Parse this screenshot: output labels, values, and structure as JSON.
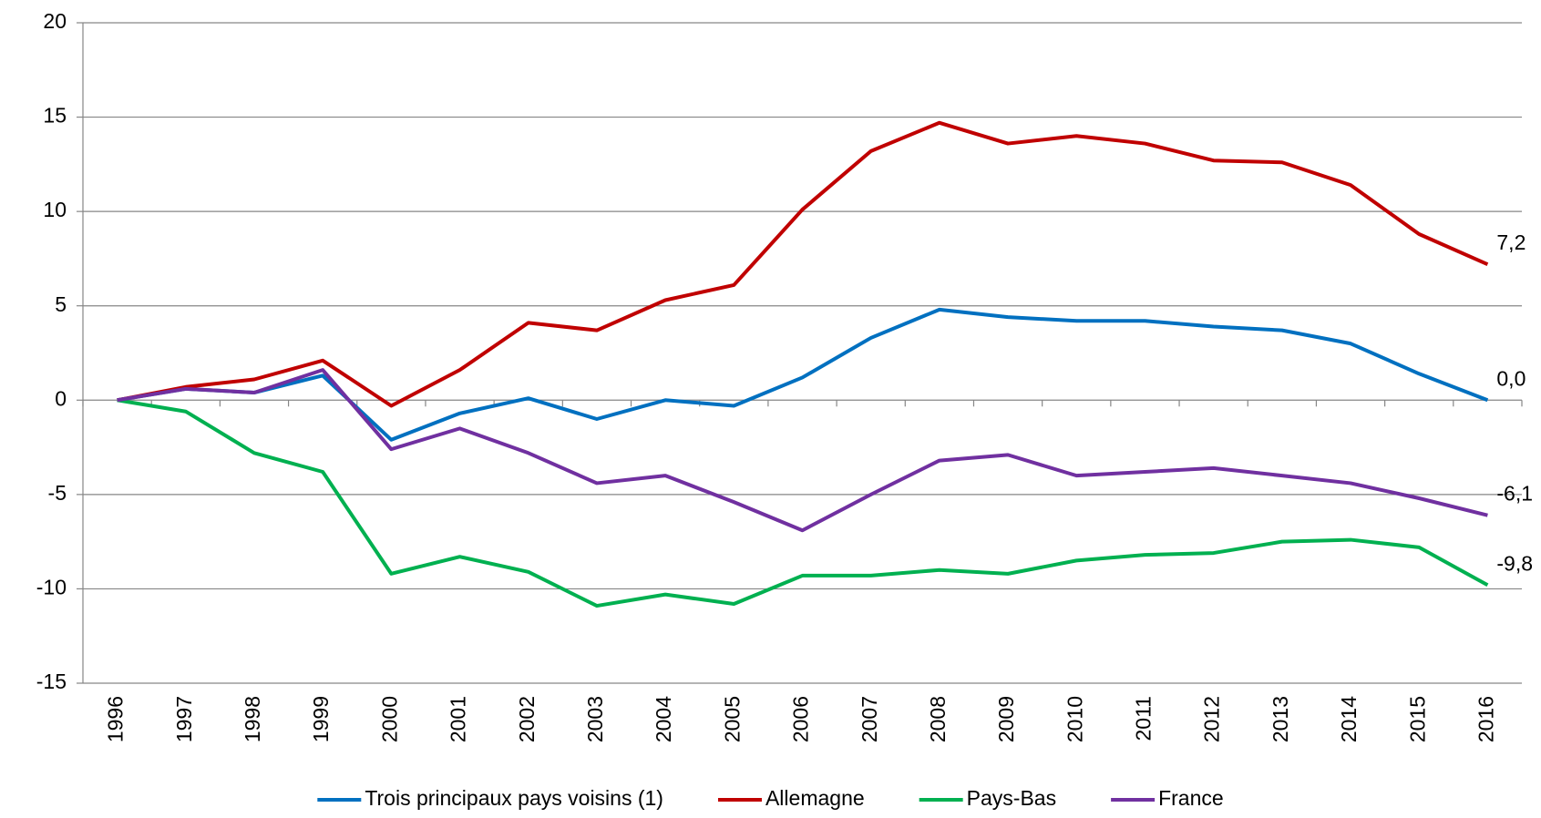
{
  "chart_data": {
    "type": "line",
    "categories": [
      "1996",
      "1997",
      "1998",
      "1999",
      "2000",
      "2001",
      "2002",
      "2003",
      "2004",
      "2005",
      "2006",
      "2007",
      "2008",
      "2009",
      "2010",
      "2011",
      "2012",
      "2013",
      "2014",
      "2015",
      "2016"
    ],
    "series": [
      {
        "name": "Trois principaux pays voisins (1)",
        "color": "#0070c0",
        "values": [
          0,
          0.6,
          0.4,
          1.3,
          -2.1,
          -0.7,
          0.1,
          -1.0,
          0.0,
          -0.3,
          1.2,
          3.3,
          4.8,
          4.4,
          4.2,
          4.2,
          3.9,
          3.7,
          3.0,
          1.4,
          0.0
        ],
        "value_labels": [
          null,
          null,
          null,
          null,
          null,
          null,
          null,
          null,
          null,
          null,
          null,
          null,
          null,
          null,
          null,
          null,
          null,
          null,
          null,
          null,
          "0,0"
        ]
      },
      {
        "name": "Allemagne",
        "color": "#c00000",
        "values": [
          0,
          0.7,
          1.1,
          2.1,
          -0.3,
          1.6,
          4.1,
          3.7,
          5.3,
          6.1,
          10.1,
          13.2,
          14.7,
          13.6,
          14.0,
          13.6,
          12.7,
          12.6,
          11.4,
          8.8,
          7.2
        ],
        "value_labels": [
          null,
          null,
          null,
          null,
          null,
          null,
          null,
          null,
          null,
          null,
          null,
          null,
          null,
          null,
          null,
          null,
          null,
          null,
          null,
          null,
          "7,2"
        ]
      },
      {
        "name": "Pays-Bas",
        "color": "#00b050",
        "values": [
          0,
          -0.6,
          -2.8,
          -3.8,
          -9.2,
          -8.3,
          -9.1,
          -10.9,
          -10.3,
          -10.8,
          -9.3,
          -9.3,
          -9.0,
          -9.2,
          -8.5,
          -8.2,
          -8.1,
          -7.5,
          -7.4,
          -7.8,
          -9.8
        ],
        "value_labels": [
          null,
          null,
          null,
          null,
          null,
          null,
          null,
          null,
          null,
          null,
          null,
          null,
          null,
          null,
          null,
          null,
          null,
          null,
          null,
          null,
          "-9,8"
        ]
      },
      {
        "name": "France",
        "color": "#7030a0",
        "values": [
          0,
          0.6,
          0.4,
          1.6,
          -2.6,
          -1.5,
          -2.8,
          -4.4,
          -4.0,
          -5.4,
          -6.9,
          -5.0,
          -3.2,
          -2.9,
          -4.0,
          -3.8,
          -3.6,
          -4.0,
          -4.4,
          -5.2,
          -6.1
        ],
        "value_labels": [
          null,
          null,
          null,
          null,
          null,
          null,
          null,
          null,
          null,
          null,
          null,
          null,
          null,
          null,
          null,
          null,
          null,
          null,
          null,
          null,
          "-6,1"
        ]
      }
    ],
    "ylim": [
      -15,
      20
    ],
    "yticks": [
      -15,
      -10,
      -5,
      0,
      5,
      10,
      15,
      20
    ],
    "grid": true,
    "legend": "bottom"
  }
}
